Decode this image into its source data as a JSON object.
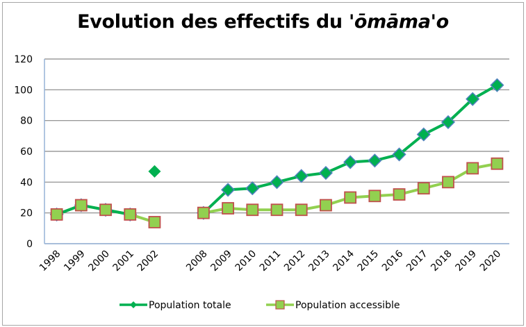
{
  "chart_data": {
    "type": "line",
    "title": "Evolution des effectifs du",
    "title_italic": "'ōmāma'o",
    "xlabel": "",
    "ylabel": "",
    "categories": [
      "1998",
      "1999",
      "2000",
      "2001",
      "2002",
      "",
      "2008",
      "2009",
      "2010",
      "2011",
      "2012",
      "2013",
      "2014",
      "2015",
      "2016",
      "2017",
      "2018",
      "2019",
      "2020"
    ],
    "ylim": [
      0,
      120
    ],
    "yticks": [
      0,
      20,
      40,
      60,
      80,
      100,
      120
    ],
    "grid": true,
    "legend_position": "bottom",
    "series": [
      {
        "name": "Population totale",
        "color": "#00b050",
        "marker": "diamond",
        "marker_border": "#4f81bd",
        "values": [
          19,
          25,
          22,
          19,
          47,
          null,
          20,
          35,
          36,
          40,
          44,
          46,
          53,
          54,
          58,
          71,
          79,
          94,
          103
        ]
      },
      {
        "name": "Population accessible",
        "color": "#92d050",
        "marker": "square",
        "marker_border": "#c0504d",
        "values": [
          19,
          25,
          22,
          19,
          14,
          null,
          20,
          23,
          22,
          22,
          22,
          25,
          30,
          31,
          32,
          36,
          40,
          49,
          52
        ]
      }
    ]
  }
}
